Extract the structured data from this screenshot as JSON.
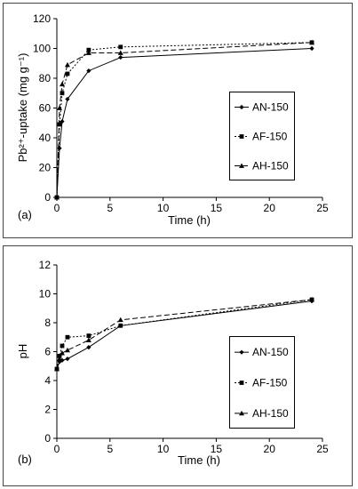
{
  "chart_data": [
    {
      "type": "line",
      "panel_label": "(a)",
      "xlabel": "Time (h)",
      "ylabel": "Pb²⁺-uptake (mg g⁻¹)",
      "xlim": [
        0,
        25
      ],
      "ylim": [
        0,
        120
      ],
      "x_ticks": [
        0,
        5,
        10,
        15,
        20,
        25
      ],
      "y_ticks": [
        0,
        20,
        40,
        60,
        80,
        100,
        120
      ],
      "grid": false,
      "legend_position": "right",
      "series": [
        {
          "name": "AN-150",
          "marker": "diamond",
          "dash": "solid",
          "x": [
            0,
            0.25,
            0.5,
            1,
            3,
            6,
            24
          ],
          "y": [
            0,
            33,
            51,
            66,
            85,
            94,
            100
          ]
        },
        {
          "name": "AF-150",
          "marker": "square",
          "dash": "dotted",
          "x": [
            0,
            0.25,
            0.5,
            1,
            3,
            6,
            24
          ],
          "y": [
            0,
            49,
            70,
            83,
            99,
            101,
            104
          ]
        },
        {
          "name": "AH-150",
          "marker": "triangle",
          "dash": "dashed",
          "x": [
            0,
            0.25,
            0.5,
            1,
            3,
            6,
            24
          ],
          "y": [
            0,
            60,
            76,
            89,
            97,
            97,
            104
          ]
        }
      ]
    },
    {
      "type": "line",
      "panel_label": "(b)",
      "xlabel": "Time (h)",
      "ylabel": "pH",
      "xlim": [
        0,
        25
      ],
      "ylim": [
        0,
        12
      ],
      "x_ticks": [
        0,
        5,
        10,
        15,
        20,
        25
      ],
      "y_ticks": [
        0,
        2,
        4,
        6,
        8,
        10,
        12
      ],
      "grid": false,
      "legend_position": "right",
      "series": [
        {
          "name": "AN-150",
          "marker": "diamond",
          "dash": "solid",
          "x": [
            0,
            0.25,
            0.5,
            1,
            3,
            6,
            24
          ],
          "y": [
            4.8,
            5.3,
            5.4,
            5.5,
            6.3,
            7.8,
            9.5
          ]
        },
        {
          "name": "AF-150",
          "marker": "square",
          "dash": "dotted",
          "x": [
            0,
            0.25,
            0.5,
            1,
            3,
            6,
            24
          ],
          "y": [
            4.8,
            5.7,
            6.4,
            7.0,
            7.1,
            7.8,
            9.6
          ]
        },
        {
          "name": "AH-150",
          "marker": "triangle",
          "dash": "dashed",
          "x": [
            0,
            0.25,
            0.5,
            1,
            3,
            6,
            24
          ],
          "y": [
            4.8,
            5.5,
            5.9,
            6.1,
            6.8,
            8.2,
            9.6
          ]
        }
      ]
    }
  ]
}
